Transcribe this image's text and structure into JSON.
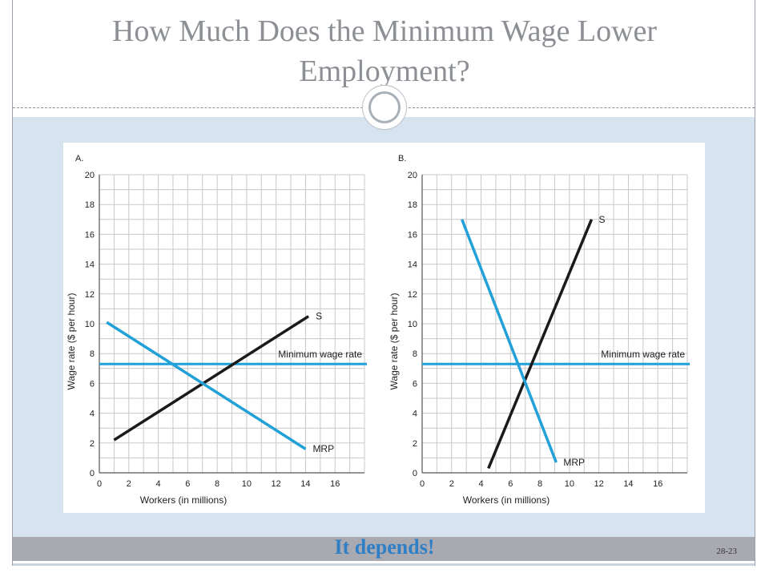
{
  "slide": {
    "title": "How Much Does the Minimum Wage Lower Employment?",
    "footer": "It depends!",
    "page_number": "28-23"
  },
  "colors": {
    "supply": "#1a1a1a",
    "mrp": "#22a0d8",
    "min_wage": "#22a0d8",
    "grid": "#c8c8c8"
  },
  "chart_data": [
    {
      "type": "line",
      "title": "A.",
      "xlabel": "Workers (in millions)",
      "ylabel": "Wage rate ($ per hour)",
      "xticks": [
        0,
        2,
        4,
        6,
        8,
        10,
        12,
        14,
        16
      ],
      "yticks": [
        0,
        2,
        4,
        6,
        8,
        10,
        12,
        14,
        16,
        18,
        20
      ],
      "xlim": [
        0,
        18
      ],
      "ylim": [
        0,
        20
      ],
      "grid": true,
      "series": [
        {
          "name": "S",
          "x": [
            1,
            14.2
          ],
          "y": [
            2.2,
            10.5
          ]
        },
        {
          "name": "MRP",
          "x": [
            0.5,
            14
          ],
          "y": [
            10.1,
            1.6
          ]
        }
      ],
      "hline": {
        "label": "Minimum wage rate",
        "y": 7.3
      }
    },
    {
      "type": "line",
      "title": "B.",
      "xlabel": "Workers (in millions)",
      "ylabel": "Wage rate ($ per hour)",
      "xticks": [
        0,
        2,
        4,
        6,
        8,
        10,
        12,
        14,
        16
      ],
      "yticks": [
        0,
        2,
        4,
        6,
        8,
        10,
        12,
        14,
        16,
        18,
        20
      ],
      "xlim": [
        0,
        18
      ],
      "ylim": [
        0,
        20
      ],
      "grid": true,
      "series": [
        {
          "name": "S",
          "x": [
            4.5,
            11.5
          ],
          "y": [
            0.3,
            17
          ]
        },
        {
          "name": "MRP",
          "x": [
            2.7,
            9.1
          ],
          "y": [
            17,
            0.7
          ]
        }
      ],
      "hline": {
        "label": "Minimum wage rate",
        "y": 7.3
      }
    }
  ]
}
